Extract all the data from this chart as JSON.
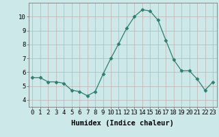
{
  "x": [
    0,
    1,
    2,
    3,
    4,
    5,
    6,
    7,
    8,
    9,
    10,
    11,
    12,
    13,
    14,
    15,
    16,
    17,
    18,
    19,
    20,
    21,
    22,
    23
  ],
  "y": [
    5.6,
    5.6,
    5.3,
    5.3,
    5.2,
    4.7,
    4.6,
    4.3,
    4.6,
    5.85,
    7.0,
    8.05,
    9.15,
    10.0,
    10.5,
    10.4,
    9.75,
    8.3,
    6.9,
    6.1,
    6.1,
    5.5,
    4.7,
    5.3
  ],
  "xlabel": "Humidex (Indice chaleur)",
  "ylim": [
    3.5,
    11.0
  ],
  "xlim": [
    -0.5,
    23.5
  ],
  "line_color": "#2e7d6e",
  "marker": "D",
  "marker_size": 2.5,
  "bg_color": "#cce8e8",
  "grid_color": "#c0b0b0",
  "tick_label_fontsize": 6.5,
  "xlabel_fontsize": 7.5,
  "yticks": [
    4,
    5,
    6,
    7,
    8,
    9,
    10
  ],
  "xticks": [
    0,
    1,
    2,
    3,
    4,
    5,
    6,
    7,
    8,
    9,
    10,
    11,
    12,
    13,
    14,
    15,
    16,
    17,
    18,
    19,
    20,
    21,
    22,
    23
  ]
}
